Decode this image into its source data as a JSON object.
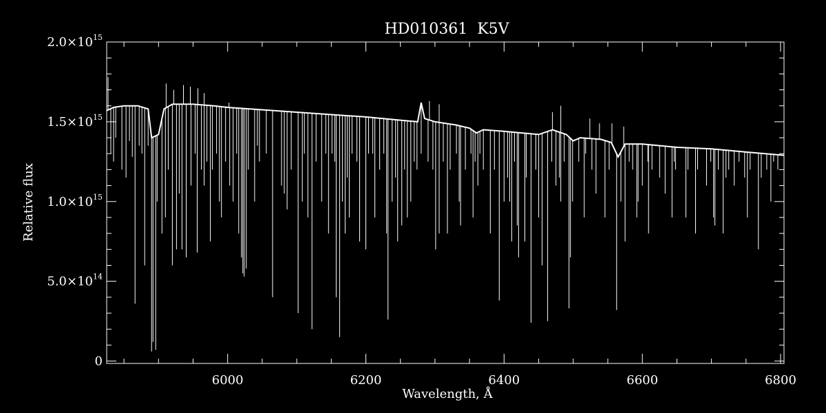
{
  "chart_data": {
    "type": "line",
    "title": "HD010361  K5V",
    "xlabel": "Wavelength, Å",
    "ylabel": "Relative flux",
    "xlim": [
      5825,
      6805
    ],
    "ylim": [
      -15000000000000.0,
      2000000000000000.0
    ],
    "grid": false,
    "legend": "none",
    "background_color": "#000000",
    "line_color": "#ffffff",
    "x_ticks": [
      {
        "value": 6000,
        "label": "6000"
      },
      {
        "value": 6200,
        "label": "6200"
      },
      {
        "value": 6400,
        "label": "6400"
      },
      {
        "value": 6600,
        "label": "6600"
      },
      {
        "value": 6800,
        "label": "6800"
      }
    ],
    "y_ticks": [
      {
        "value": 0,
        "mantissa": "0",
        "exponent": ""
      },
      {
        "value": 500000000000000.0,
        "mantissa": "5.0×10",
        "exponent": "14"
      },
      {
        "value": 1000000000000000.0,
        "mantissa": "1.0×10",
        "exponent": "15"
      },
      {
        "value": 1500000000000000.0,
        "mantissa": "1.5×10",
        "exponent": "15"
      },
      {
        "value": 2000000000000000.0,
        "mantissa": "2.0×10",
        "exponent": "15"
      }
    ],
    "continuum": [
      [
        5825,
        1570000000000000.0
      ],
      [
        5835,
        1590000000000000.0
      ],
      [
        5850,
        1600000000000000.0
      ],
      [
        5870,
        1600000000000000.0
      ],
      [
        5885,
        1580000000000000.0
      ],
      [
        5890,
        1400000000000000.0
      ],
      [
        5900,
        1420000000000000.0
      ],
      [
        5908,
        1580000000000000.0
      ],
      [
        5920,
        1610000000000000.0
      ],
      [
        5950,
        1610000000000000.0
      ],
      [
        5980,
        1600000000000000.0
      ],
      [
        6000,
        1590000000000000.0
      ],
      [
        6050,
        1575000000000000.0
      ],
      [
        6100,
        1560000000000000.0
      ],
      [
        6150,
        1545000000000000.0
      ],
      [
        6200,
        1530000000000000.0
      ],
      [
        6250,
        1510000000000000.0
      ],
      [
        6275,
        1500000000000000.0
      ],
      [
        6280,
        1620000000000000.0
      ],
      [
        6285,
        1520000000000000.0
      ],
      [
        6300,
        1500000000000000.0
      ],
      [
        6330,
        1480000000000000.0
      ],
      [
        6350,
        1460000000000000.0
      ],
      [
        6360,
        1430000000000000.0
      ],
      [
        6370,
        1450000000000000.0
      ],
      [
        6400,
        1440000000000000.0
      ],
      [
        6450,
        1420000000000000.0
      ],
      [
        6470,
        1450000000000000.0
      ],
      [
        6490,
        1420000000000000.0
      ],
      [
        6500,
        1380000000000000.0
      ],
      [
        6510,
        1400000000000000.0
      ],
      [
        6540,
        1390000000000000.0
      ],
      [
        6555,
        1370000000000000.0
      ],
      [
        6565,
        1280000000000000.0
      ],
      [
        6575,
        1360000000000000.0
      ],
      [
        6600,
        1360000000000000.0
      ],
      [
        6650,
        1340000000000000.0
      ],
      [
        6700,
        1330000000000000.0
      ],
      [
        6750,
        1310000000000000.0
      ],
      [
        6805,
        1290000000000000.0
      ]
    ],
    "absorption_lines": [
      [
        5831,
        1300000000000000.0
      ],
      [
        5835,
        1250000000000000.0
      ],
      [
        5838,
        1400000000000000.0
      ],
      [
        5847,
        1200000000000000.0
      ],
      [
        5853,
        1150000000000000.0
      ],
      [
        5858,
        1380000000000000.0
      ],
      [
        5862,
        1280000000000000.0
      ],
      [
        5866,
        360000000000000.0
      ],
      [
        5872,
        1350000000000000.0
      ],
      [
        5876,
        1300000000000000.0
      ],
      [
        5880,
        600000000000000.0
      ],
      [
        5885,
        1350000000000000.0
      ],
      [
        5889.9,
        60000000000000.0
      ],
      [
        5892,
        120000000000000.0
      ],
      [
        5895.9,
        70000000000000.0
      ],
      [
        5898,
        1000000000000000.0
      ],
      [
        5905,
        800000000000000.0
      ],
      [
        5910,
        900000000000000.0
      ],
      [
        5914,
        1200000000000000.0
      ],
      [
        5920,
        600000000000000.0
      ],
      [
        5926,
        700000000000000.0
      ],
      [
        5930,
        1050000000000000.0
      ],
      [
        5934,
        700000000000000.0
      ],
      [
        5940,
        650000000000000.0
      ],
      [
        5947,
        1100000000000000.0
      ],
      [
        5953,
        1300000000000000.0
      ],
      [
        5956,
        680000000000000.0
      ],
      [
        5962,
        1200000000000000.0
      ],
      [
        5966,
        1100000000000000.0
      ],
      [
        5970,
        1250000000000000.0
      ],
      [
        5975,
        750000000000000.0
      ],
      [
        5978,
        1200000000000000.0
      ],
      [
        5984,
        1300000000000000.0
      ],
      [
        5988,
        1000000000000000.0
      ],
      [
        5991,
        900000000000000.0
      ],
      [
        5997,
        1250000000000000.0
      ],
      [
        6003,
        1100000000000000.0
      ],
      [
        6008,
        1000000000000000.0
      ],
      [
        6013,
        1300000000000000.0
      ],
      [
        6016,
        800000000000000.0
      ],
      [
        6020,
        650000000000000.0
      ],
      [
        6022,
        550000000000000.0
      ],
      [
        6024,
        530000000000000.0
      ],
      [
        6027,
        580000000000000.0
      ],
      [
        6030,
        1200000000000000.0
      ],
      [
        6039,
        1000000000000000.0
      ],
      [
        6043,
        1350000000000000.0
      ],
      [
        6046,
        1250000000000000.0
      ],
      [
        6056,
        1300000000000000.0
      ],
      [
        6065,
        400000000000000.0
      ],
      [
        6078,
        1100000000000000.0
      ],
      [
        6082,
        1050000000000000.0
      ],
      [
        6086,
        950000000000000.0
      ],
      [
        6092,
        1200000000000000.0
      ],
      [
        6102,
        300000000000000.0
      ],
      [
        6108,
        1000000000000000.0
      ],
      [
        6111,
        1300000000000000.0
      ],
      [
        6116,
        900000000000000.0
      ],
      [
        6122,
        200000000000000.0
      ],
      [
        6128,
        1250000000000000.0
      ],
      [
        6136,
        1000000000000000.0
      ],
      [
        6142,
        1300000000000000.0
      ],
      [
        6146,
        800000000000000.0
      ],
      [
        6151,
        1300000000000000.0
      ],
      [
        6155,
        1250000000000000.0
      ],
      [
        6157,
        400000000000000.0
      ],
      [
        6162,
        150000000000000.0
      ],
      [
        6166,
        1000000000000000.0
      ],
      [
        6170,
        800000000000000.0
      ],
      [
        6173,
        1150000000000000.0
      ],
      [
        6176,
        900000000000000.0
      ],
      [
        6180,
        1300000000000000.0
      ],
      [
        6187,
        1250000000000000.0
      ],
      [
        6191,
        750000000000000.0
      ],
      [
        6200,
        700000000000000.0
      ],
      [
        6204,
        1300000000000000.0
      ],
      [
        6210,
        1300000000000000.0
      ],
      [
        6213,
        900000000000000.0
      ],
      [
        6220,
        1200000000000000.0
      ],
      [
        6226,
        1300000000000000.0
      ],
      [
        6230,
        800000000000000.0
      ],
      [
        6232,
        260000000000000.0
      ],
      [
        6238,
        1000000000000000.0
      ],
      [
        6243,
        1150000000000000.0
      ],
      [
        6246,
        750000000000000.0
      ],
      [
        6252,
        850000000000000.0
      ],
      [
        6256,
        1200000000000000.0
      ],
      [
        6260,
        900000000000000.0
      ],
      [
        6265,
        1000000000000000.0
      ],
      [
        6270,
        1250000000000000.0
      ],
      [
        6274,
        1200000000000000.0
      ],
      [
        6280,
        1300000000000000.0
      ],
      [
        6290,
        1250000000000000.0
      ],
      [
        6297,
        1200000000000000.0
      ],
      [
        6301,
        700000000000000.0
      ],
      [
        6306,
        800000000000000.0
      ],
      [
        6312,
        1250000000000000.0
      ],
      [
        6318,
        800000000000000.0
      ],
      [
        6322,
        1200000000000000.0
      ],
      [
        6331,
        1300000000000000.0
      ],
      [
        6335,
        1000000000000000.0
      ],
      [
        6337,
        850000000000000.0
      ],
      [
        6344,
        1200000000000000.0
      ],
      [
        6352,
        1300000000000000.0
      ],
      [
        6355,
        900000000000000.0
      ],
      [
        6358,
        1250000000000000.0
      ],
      [
        6362,
        1100000000000000.0
      ],
      [
        6365,
        1300000000000000.0
      ],
      [
        6370,
        1200000000000000.0
      ],
      [
        6380,
        800000000000000.0
      ],
      [
        6386,
        1200000000000000.0
      ],
      [
        6393,
        380000000000000.0
      ],
      [
        6400,
        1000000000000000.0
      ],
      [
        6405,
        1150000000000000.0
      ],
      [
        6408,
        1000000000000000.0
      ],
      [
        6411,
        750000000000000.0
      ],
      [
        6415,
        1250000000000000.0
      ],
      [
        6419,
        850000000000000.0
      ],
      [
        6421,
        650000000000000.0
      ],
      [
        6430,
        750000000000000.0
      ],
      [
        6432,
        1150000000000000.0
      ],
      [
        6439,
        240000000000000.0
      ],
      [
        6446,
        1200000000000000.0
      ],
      [
        6450,
        900000000000000.0
      ],
      [
        6455,
        600000000000000.0
      ],
      [
        6463,
        250000000000000.0
      ],
      [
        6469,
        1250000000000000.0
      ],
      [
        6475,
        1100000000000000.0
      ],
      [
        6480,
        1150000000000000.0
      ],
      [
        6482,
        1000000000000000.0
      ],
      [
        6487,
        1250000000000000.0
      ],
      [
        6494,
        330000000000000.0
      ],
      [
        6496,
        650000000000000.0
      ],
      [
        6499,
        1000000000000000.0
      ],
      [
        6508,
        1250000000000000.0
      ],
      [
        6516,
        900000000000000.0
      ],
      [
        6518,
        1300000000000000.0
      ],
      [
        6527,
        1200000000000000.0
      ],
      [
        6533,
        1050000000000000.0
      ],
      [
        6546,
        900000000000000.0
      ],
      [
        6552,
        1200000000000000.0
      ],
      [
        6562.8,
        320000000000000.0
      ],
      [
        6569,
        1000000000000000.0
      ],
      [
        6575,
        750000000000000.0
      ],
      [
        6581,
        1250000000000000.0
      ],
      [
        6586,
        1200000000000000.0
      ],
      [
        6592,
        900000000000000.0
      ],
      [
        6594,
        1000000000000000.0
      ],
      [
        6600,
        1100000000000000.0
      ],
      [
        6608,
        1250000000000000.0
      ],
      [
        6609,
        800000000000000.0
      ],
      [
        6614,
        1200000000000000.0
      ],
      [
        6625,
        1150000000000000.0
      ],
      [
        6633,
        1050000000000000.0
      ],
      [
        6643,
        900000000000000.0
      ],
      [
        6646,
        1250000000000000.0
      ],
      [
        6648,
        1200000000000000.0
      ],
      [
        6663,
        900000000000000.0
      ],
      [
        6666,
        1200000000000000.0
      ],
      [
        6677,
        800000000000000.0
      ],
      [
        6680,
        1200000000000000.0
      ],
      [
        6693,
        1100000000000000.0
      ],
      [
        6699,
        1250000000000000.0
      ],
      [
        6703,
        900000000000000.0
      ],
      [
        6705,
        850000000000000.0
      ],
      [
        6710,
        1200000000000000.0
      ],
      [
        6717,
        800000000000000.0
      ],
      [
        6721,
        1150000000000000.0
      ],
      [
        6725,
        1200000000000000.0
      ],
      [
        6733,
        1100000000000000.0
      ],
      [
        6740,
        1250000000000000.0
      ],
      [
        6748,
        1150000000000000.0
      ],
      [
        6752,
        900000000000000.0
      ],
      [
        6756,
        1200000000000000.0
      ],
      [
        6768,
        700000000000000.0
      ],
      [
        6772,
        1150000000000000.0
      ],
      [
        6780,
        1200000000000000.0
      ],
      [
        6786,
        1000000000000000.0
      ],
      [
        6790,
        1250000000000000.0
      ],
      [
        6796,
        1200000000000000.0
      ]
    ],
    "emission_spikes": [
      [
        5827,
        1780000000000000.0
      ],
      [
        5911,
        1740000000000000.0
      ],
      [
        5922,
        1700000000000000.0
      ],
      [
        5936,
        1730000000000000.0
      ],
      [
        5946,
        1720000000000000.0
      ],
      [
        5957,
        1710000000000000.0
      ],
      [
        5966,
        1680000000000000.0
      ],
      [
        6002,
        1620000000000000.0
      ],
      [
        6292,
        1630000000000000.0
      ],
      [
        6306,
        1610000000000000.0
      ],
      [
        6470,
        1560000000000000.0
      ],
      [
        6482,
        1600000000000000.0
      ],
      [
        6524,
        1520000000000000.0
      ],
      [
        6538,
        1490000000000000.0
      ],
      [
        6556,
        1490000000000000.0
      ],
      [
        6573,
        1470000000000000.0
      ]
    ]
  }
}
